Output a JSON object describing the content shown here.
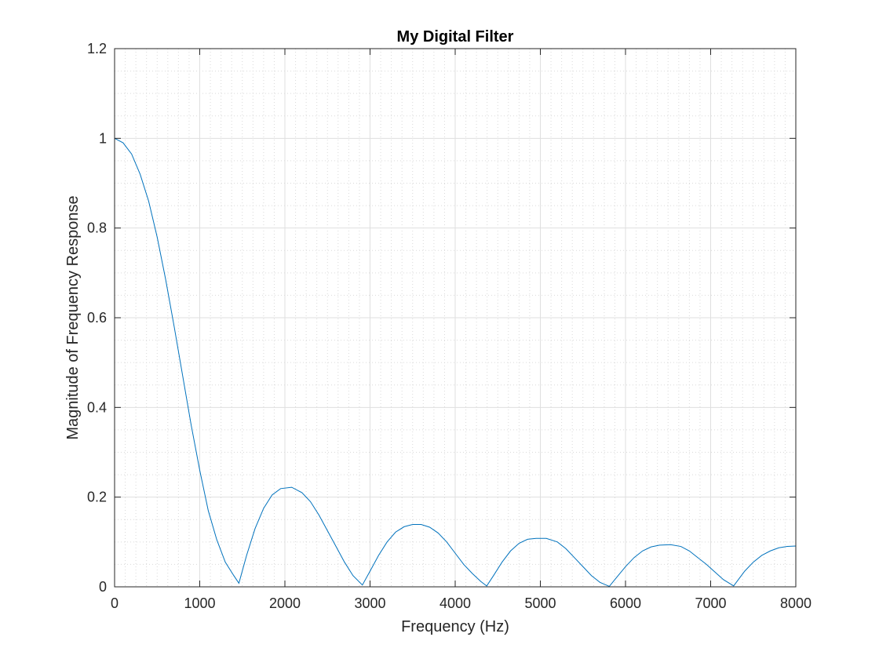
{
  "chart_data": {
    "type": "line",
    "title": "My Digital Filter",
    "xlabel": "Frequency (Hz)",
    "ylabel": "Magnitude of Frequency Response",
    "xlim": [
      0,
      8000
    ],
    "ylim": [
      0,
      1.2
    ],
    "xticks": [
      0,
      1000,
      2000,
      3000,
      4000,
      5000,
      6000,
      7000,
      8000
    ],
    "xtick_labels": [
      "0",
      "1000",
      "2000",
      "3000",
      "4000",
      "5000",
      "6000",
      "7000",
      "8000"
    ],
    "yticks": [
      0,
      0.2,
      0.4,
      0.6,
      0.8,
      1,
      1.2
    ],
    "ytick_labels": [
      "0",
      "0.2",
      "0.4",
      "0.6",
      "0.8",
      "1",
      "1.2"
    ],
    "grid": true,
    "minor_grid": true,
    "line_color": "#0072bd",
    "series": [
      {
        "x": [
          0,
          100,
          200,
          300,
          400,
          500,
          600,
          700,
          800,
          900,
          1000,
          1100,
          1200,
          1300,
          1400,
          1460,
          1550,
          1650,
          1750,
          1850,
          1950,
          2080,
          2200,
          2300,
          2400,
          2500,
          2600,
          2700,
          2800,
          2910,
          3000,
          3100,
          3200,
          3300,
          3400,
          3500,
          3600,
          3700,
          3800,
          3900,
          4000,
          4100,
          4200,
          4300,
          4370,
          4450,
          4550,
          4650,
          4750,
          4850,
          4950,
          5070,
          5200,
          5300,
          5400,
          5500,
          5600,
          5700,
          5810,
          5900,
          6000,
          6100,
          6200,
          6300,
          6400,
          6530,
          6650,
          6750,
          6850,
          6950,
          7050,
          7150,
          7270,
          7400,
          7500,
          7600,
          7700,
          7800,
          7900,
          8000
        ],
        "y": [
          1.0,
          0.99,
          0.965,
          0.92,
          0.86,
          0.78,
          0.685,
          0.58,
          0.47,
          0.36,
          0.26,
          0.17,
          0.105,
          0.055,
          0.025,
          0.008,
          0.07,
          0.13,
          0.175,
          0.205,
          0.219,
          0.222,
          0.21,
          0.19,
          0.16,
          0.125,
          0.09,
          0.055,
          0.025,
          0.004,
          0.035,
          0.07,
          0.1,
          0.122,
          0.134,
          0.139,
          0.139,
          0.133,
          0.12,
          0.1,
          0.075,
          0.05,
          0.03,
          0.012,
          0.002,
          0.025,
          0.055,
          0.08,
          0.097,
          0.106,
          0.108,
          0.108,
          0.1,
          0.085,
          0.065,
          0.045,
          0.025,
          0.01,
          0.001,
          0.022,
          0.045,
          0.065,
          0.08,
          0.089,
          0.093,
          0.094,
          0.09,
          0.08,
          0.065,
          0.05,
          0.033,
          0.016,
          0.002,
          0.035,
          0.055,
          0.07,
          0.08,
          0.087,
          0.09,
          0.091
        ]
      }
    ]
  }
}
